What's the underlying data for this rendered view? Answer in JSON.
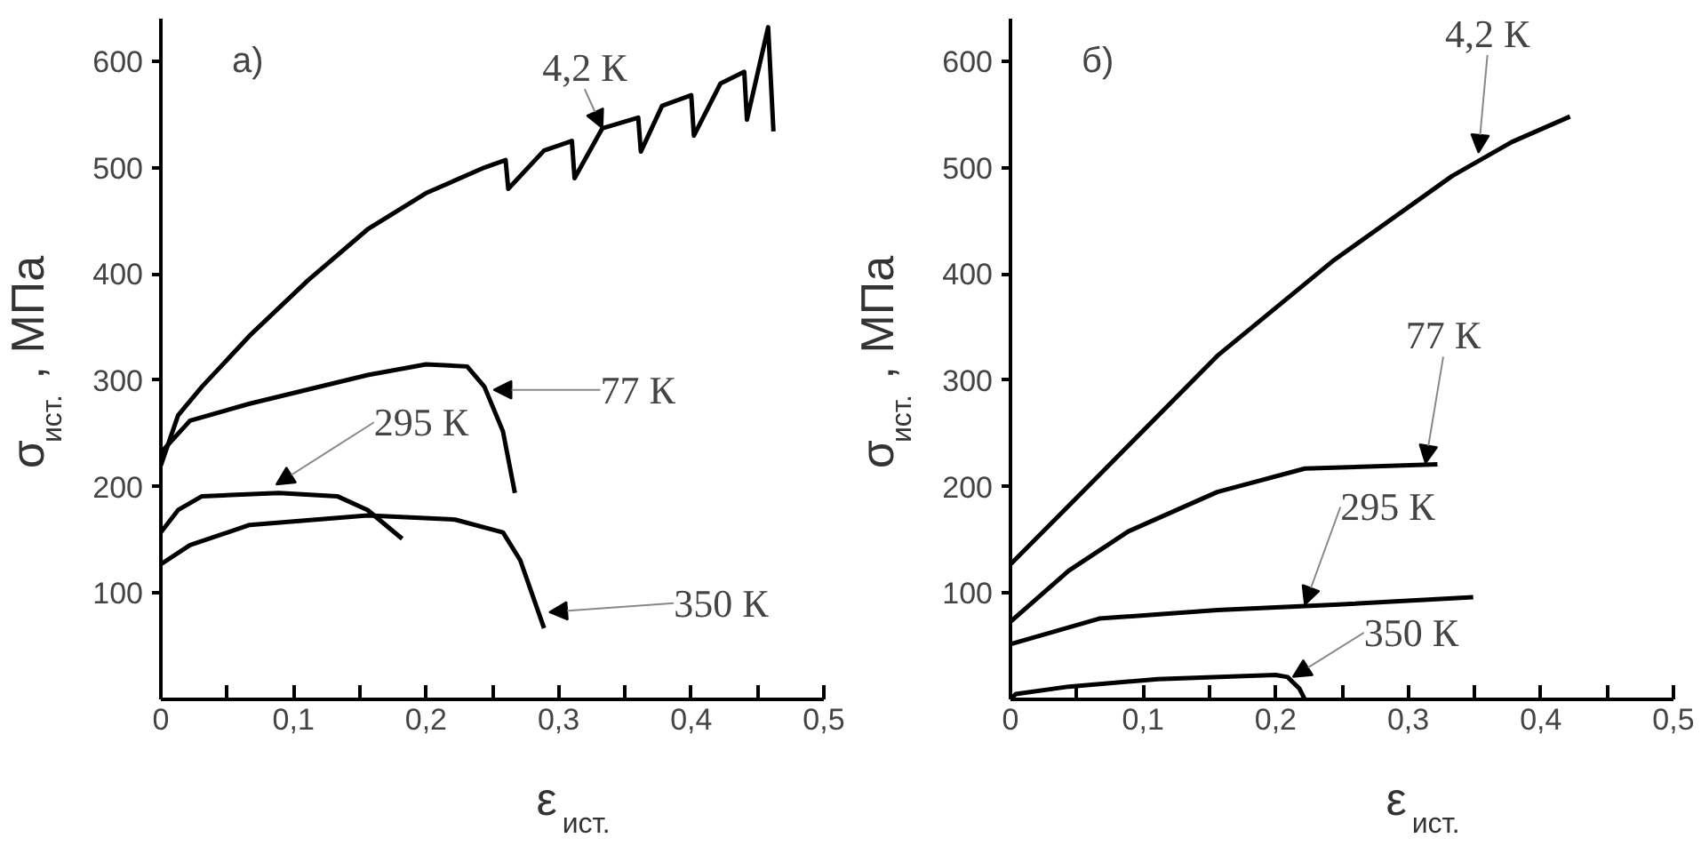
{
  "chart_data": [
    {
      "type": "line",
      "title": "а)",
      "xlabel": "ε$_{ист.}$",
      "ylabel": "σ$_{ист.}$, МПа",
      "xlim": [
        0,
        0.5
      ],
      "ylim": [
        0,
        640
      ],
      "xticks": [
        0,
        {
          "value": 0.05,
          "label": null
        },
        {
          "value": 0.1,
          "label": "0,1"
        },
        {
          "value": 0.15,
          "label": null
        },
        {
          "value": 0.2,
          "label": "0,2"
        },
        {
          "value": 0.25,
          "label": null
        },
        {
          "value": 0.3,
          "label": "0,3"
        },
        {
          "value": 0.35,
          "label": null
        },
        {
          "value": 0.4,
          "label": "0,4"
        },
        {
          "value": 0.45,
          "label": null
        },
        {
          "value": 0.5,
          "label": "0,5"
        }
      ],
      "yticks": [
        100,
        200,
        300,
        400,
        500,
        600
      ],
      "series": [
        {
          "color": "#000000",
          "x": [
            0,
            0.013,
            0.031,
            0.067,
            0.111,
            0.156,
            0.2,
            0.244,
            0.26,
            0.262,
            0.289,
            0.31,
            0.312,
            0.333,
            0.36,
            0.362,
            0.378,
            0.4,
            0.402,
            0.422,
            0.44,
            0.442,
            0.458,
            0.462
          ],
          "values": [
            220,
            267,
            294,
            342,
            394,
            442,
            476,
            500,
            507,
            480,
            516,
            525,
            490,
            537,
            547,
            515,
            558,
            568,
            530,
            579,
            590,
            545,
            632,
            534
          ]
        },
        {
          "color": "#000000",
          "x": [
            0,
            0.022,
            0.067,
            0.156,
            0.2,
            0.231,
            0.244,
            0.258,
            0.267
          ],
          "values": [
            232,
            262,
            278,
            305,
            315,
            313,
            294,
            252,
            194
          ]
        },
        {
          "color": "#000000",
          "x": [
            0,
            0.013,
            0.031,
            0.089,
            0.133,
            0.156,
            0.182
          ],
          "values": [
            157,
            178,
            191,
            194,
            191,
            178,
            151
          ]
        },
        {
          "color": "#000000",
          "x": [
            0,
            0.022,
            0.067,
            0.156,
            0.222,
            0.258,
            0.271,
            0.289
          ],
          "values": [
            127,
            145,
            164,
            173,
            169,
            157,
            131,
            67
          ]
        }
      ],
      "annotations": [
        {
          "text": "4,2 К",
          "x": 0.333,
          "y": 537
        },
        {
          "text": "77 К",
          "x": 0.251,
          "y": 291
        },
        {
          "text": "295 К",
          "x": 0.087,
          "y": 202
        },
        {
          "text": "350 К",
          "x": 0.293,
          "y": 82
        }
      ]
    },
    {
      "type": "line",
      "title": "б)",
      "xlabel": "ε$_{ист.}$",
      "ylabel": "σ$_{ист.}$, МПа",
      "xlim": [
        0,
        0.5
      ],
      "ylim": [
        0,
        640
      ],
      "xticks": [
        0,
        {
          "value": 0.05,
          "label": null
        },
        {
          "value": 0.1,
          "label": "0,1"
        },
        {
          "value": 0.15,
          "label": null
        },
        {
          "value": 0.2,
          "label": "0,2"
        },
        {
          "value": 0.25,
          "label": null
        },
        {
          "value": 0.3,
          "label": "0,3"
        },
        {
          "value": 0.35,
          "label": null
        },
        {
          "value": 0.4,
          "label": "0,4"
        },
        {
          "value": 0.45,
          "label": null
        },
        {
          "value": 0.5,
          "label": "0,5"
        }
      ],
      "yticks": [
        100,
        200,
        300,
        400,
        500,
        600
      ],
      "series": [
        {
          "color": "#000000",
          "x": [
            0,
            0.067,
            0.156,
            0.244,
            0.333,
            0.378,
            0.422
          ],
          "values": [
            127,
            211,
            323,
            413,
            492,
            524,
            548
          ]
        },
        {
          "color": "#000000",
          "x": [
            0,
            0.044,
            0.089,
            0.156,
            0.222,
            0.322
          ],
          "values": [
            73,
            121,
            158,
            195,
            217,
            221
          ]
        },
        {
          "color": "#000000",
          "x": [
            0,
            0.067,
            0.156,
            0.244,
            0.349
          ],
          "values": [
            52,
            76,
            84,
            89,
            96
          ]
        },
        {
          "color": "#000000",
          "x": [
            0,
            0.004,
            0.044,
            0.111,
            0.2,
            0.209,
            0.218,
            0.222
          ],
          "values": [
            0,
            5,
            12,
            19,
            23,
            21,
            10,
            0
          ]
        }
      ],
      "annotations": [
        {
          "text": "4,2 К",
          "x": 0.353,
          "y": 514
        },
        {
          "text": "77 К",
          "x": 0.313,
          "y": 222
        },
        {
          "text": "295 К",
          "x": 0.222,
          "y": 89
        },
        {
          "text": "350 К",
          "x": 0.213,
          "y": 21
        }
      ]
    }
  ]
}
